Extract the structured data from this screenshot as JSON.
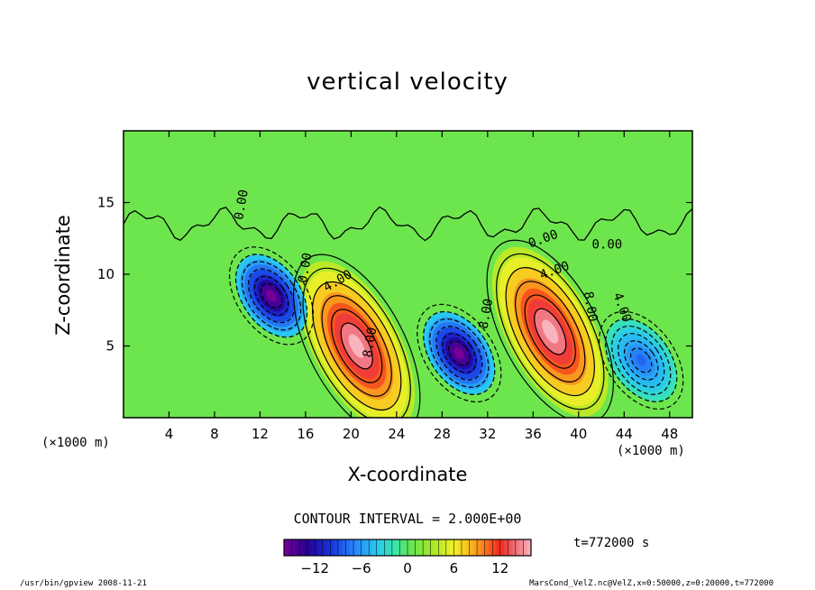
{
  "chart_data": {
    "type": "heatmap",
    "title": "vertical velocity",
    "xlabel": "X-coordinate",
    "ylabel": "Z-coordinate",
    "x_unit_note": "(×1000 m)",
    "y_unit_note": "(×1000 m)",
    "xlim": [
      0,
      50
    ],
    "ylim": [
      0,
      20
    ],
    "x_ticks": [
      4,
      8,
      12,
      16,
      20,
      24,
      28,
      32,
      36,
      40,
      44,
      48
    ],
    "y_ticks": [
      5,
      10,
      15
    ],
    "contour_interval_text": "CONTOUR INTERVAL = 2.000E+00",
    "contour_labels": [
      "0.00",
      "4.00",
      "8.00"
    ],
    "colorbar": {
      "range": [
        -16,
        16
      ],
      "ticks": [
        -12,
        -6,
        0,
        6,
        12
      ],
      "colormap": "rainbow (purple-blue-cyan-green-yellow-red-pink)"
    },
    "features": [
      {
        "sign": "positive",
        "x": 20.5,
        "z": 5.0,
        "peak": 16
      },
      {
        "sign": "positive",
        "x": 37.5,
        "z": 6.0,
        "peak": 16
      },
      {
        "sign": "negative",
        "x": 13.0,
        "z": 8.5,
        "peak": -16
      },
      {
        "sign": "negative",
        "x": 29.5,
        "z": 4.5,
        "peak": -16
      },
      {
        "sign": "negative",
        "x": 45.5,
        "z": 4.0,
        "peak": -8
      }
    ]
  },
  "time_text": "t=772000 s",
  "footer_left": "/usr/bin/gpview   2008-11-21",
  "footer_right": "MarsCond_VelZ.nc@VelZ,x=0:50000,z=0:20000,t=772000"
}
